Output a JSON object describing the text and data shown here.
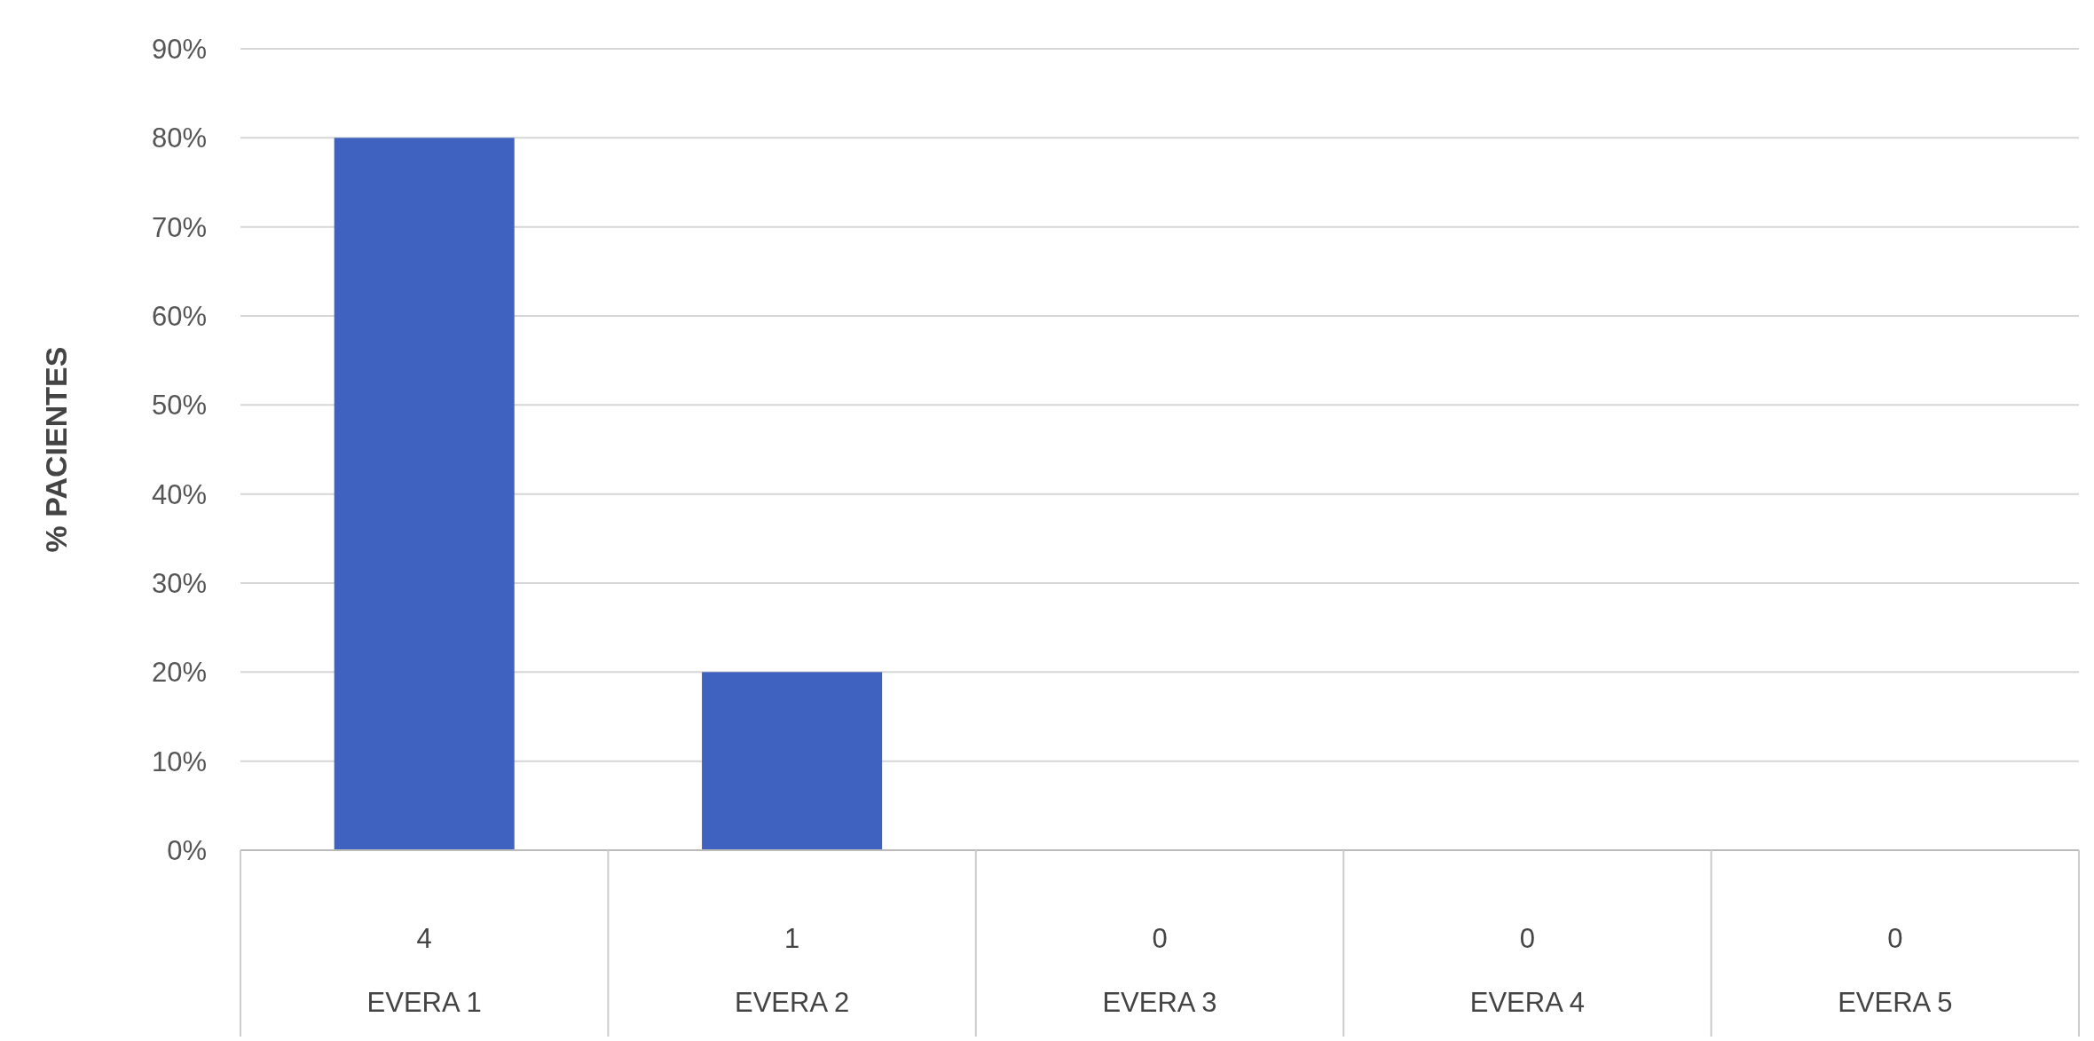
{
  "chart_data": {
    "type": "bar",
    "ylabel": "% PACIENTES",
    "categories": [
      "EVERA 1",
      "EVERA 2",
      "EVERA 3",
      "EVERA 4",
      "EVERA 5"
    ],
    "values": [
      80,
      20,
      0,
      0,
      0
    ],
    "annotations": [
      "4",
      "1",
      "0",
      "0",
      "0"
    ],
    "color": "#3f62c1",
    "ylim": [
      0,
      90
    ],
    "yticks": [
      {
        "value": 0,
        "label": "0%"
      },
      {
        "value": 10,
        "label": "10%"
      },
      {
        "value": 20,
        "label": "20%"
      },
      {
        "value": 30,
        "label": "30%"
      },
      {
        "value": 40,
        "label": "40%"
      },
      {
        "value": 50,
        "label": "50%"
      },
      {
        "value": 60,
        "label": "60%"
      },
      {
        "value": 70,
        "label": "70%"
      },
      {
        "value": 80,
        "label": "80%"
      },
      {
        "value": 90,
        "label": "90%"
      }
    ],
    "grid": "y"
  }
}
